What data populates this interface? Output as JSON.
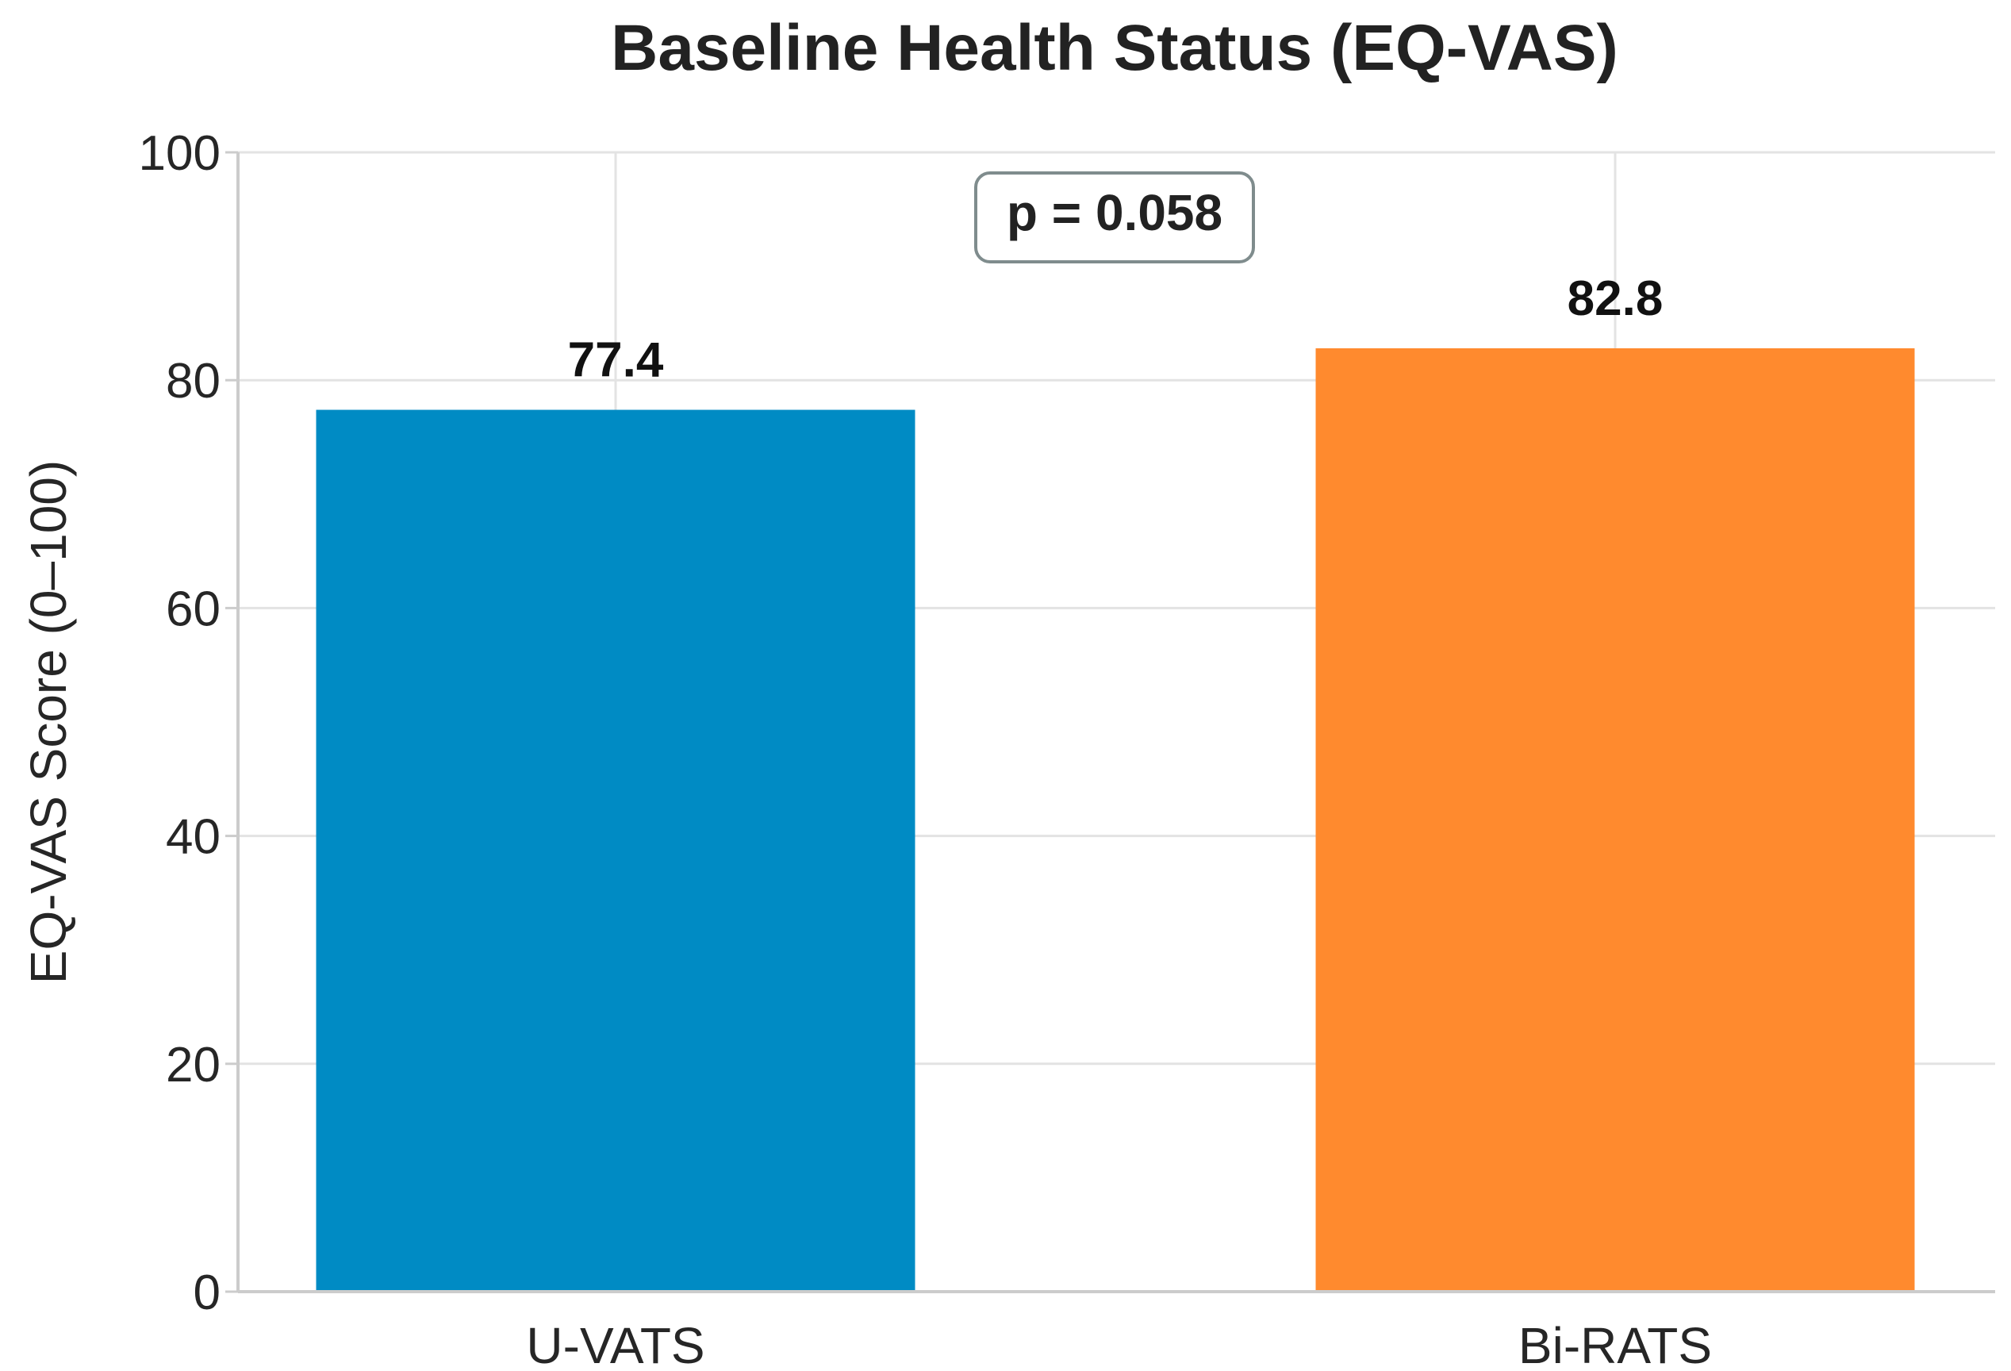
{
  "chart_data": {
    "type": "bar",
    "title": "Baseline Health Status (EQ-VAS)",
    "xlabel": "",
    "ylabel": "EQ-VAS Score (0–100)",
    "categories": [
      "U-VATS",
      "Bi-RATS"
    ],
    "values": [
      77.4,
      82.8
    ],
    "value_labels": [
      "77.4",
      "82.8"
    ],
    "colors": [
      "#008BC4",
      "#FF8A2E"
    ],
    "ylim": [
      0,
      100
    ],
    "yticks": [
      0,
      20,
      40,
      60,
      80,
      100
    ],
    "ytick_labels": [
      "0",
      "20",
      "40",
      "60",
      "80",
      "100"
    ],
    "grid": true,
    "annotation": "p = 0.058"
  }
}
